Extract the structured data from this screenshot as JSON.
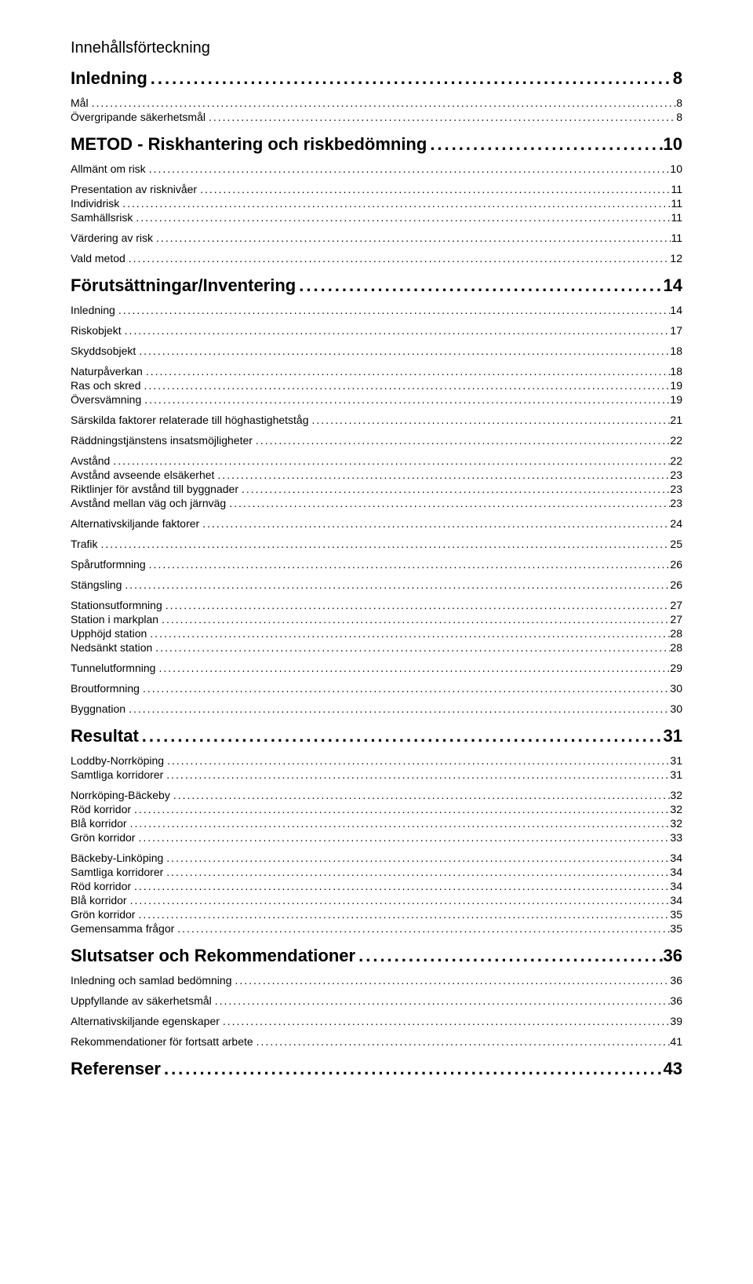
{
  "title": "Innehållsförteckning",
  "styles": {
    "background": "#ffffff",
    "textColor": "#000000",
    "lvl0_fontsize": 22,
    "lvl0_bold": true,
    "lvl1_fontsize": 14,
    "lvl2_fontsize": 14,
    "fontFamily": "Verdana"
  },
  "entries": [
    {
      "level": 0,
      "label": "Inledning",
      "page": "8"
    },
    {
      "level": 1,
      "label": "Mål",
      "page": "8"
    },
    {
      "level": 2,
      "label": "Övergripande säkerhetsmål",
      "page": "8"
    },
    {
      "level": 0,
      "label": "METOD - Riskhantering och riskbedömning",
      "page": "10"
    },
    {
      "level": 1,
      "label": "Allmänt om risk",
      "page": "10"
    },
    {
      "level": 1,
      "label": "Presentation av risknivåer",
      "page": "11"
    },
    {
      "level": 2,
      "label": "Individrisk",
      "page": "11"
    },
    {
      "level": 2,
      "label": "Samhällsrisk",
      "page": "11"
    },
    {
      "level": 1,
      "label": "Värdering av risk",
      "page": "11"
    },
    {
      "level": 1,
      "label": "Vald metod",
      "page": "12"
    },
    {
      "level": 0,
      "label": "Förutsättningar/Inventering",
      "page": "14"
    },
    {
      "level": 1,
      "label": "Inledning",
      "page": "14"
    },
    {
      "level": 1,
      "label": "Riskobjekt",
      "page": "17"
    },
    {
      "level": 1,
      "label": "Skyddsobjekt",
      "page": "18"
    },
    {
      "level": 1,
      "label": "Naturpåverkan",
      "page": "18"
    },
    {
      "level": 2,
      "label": "Ras och skred",
      "page": "19"
    },
    {
      "level": 2,
      "label": "Översvämning",
      "page": "19"
    },
    {
      "level": 1,
      "label": "Särskilda faktorer relaterade till höghastighetståg",
      "page": "21"
    },
    {
      "level": 1,
      "label": "Räddningstjänstens insatsmöjligheter",
      "page": "22"
    },
    {
      "level": 1,
      "label": "Avstånd",
      "page": "22"
    },
    {
      "level": 2,
      "label": "Avstånd avseende elsäkerhet",
      "page": "23"
    },
    {
      "level": 2,
      "label": "Riktlinjer för avstånd till byggnader",
      "page": "23"
    },
    {
      "level": 2,
      "label": "Avstånd mellan väg och järnväg",
      "page": "23"
    },
    {
      "level": 1,
      "label": "Alternativskiljande faktorer",
      "page": "24"
    },
    {
      "level": 1,
      "label": "Trafik",
      "page": "25"
    },
    {
      "level": 1,
      "label": "Spårutformning",
      "page": "26"
    },
    {
      "level": 1,
      "label": "Stängsling",
      "page": "26"
    },
    {
      "level": 1,
      "label": "Stationsutformning",
      "page": "27"
    },
    {
      "level": 2,
      "label": "Station i markplan",
      "page": "27"
    },
    {
      "level": 2,
      "label": "Upphöjd station",
      "page": "28"
    },
    {
      "level": 2,
      "label": "Nedsänkt station",
      "page": "28"
    },
    {
      "level": 1,
      "label": "Tunnelutformning",
      "page": "29"
    },
    {
      "level": 1,
      "label": "Broutformning",
      "page": "30"
    },
    {
      "level": 1,
      "label": "Byggnation",
      "page": "30"
    },
    {
      "level": 0,
      "label": "Resultat",
      "page": "31"
    },
    {
      "level": 1,
      "label": "Loddby-Norrköping",
      "page": "31"
    },
    {
      "level": 2,
      "label": "Samtliga korridorer",
      "page": "31"
    },
    {
      "level": 1,
      "label": "Norrköping-Bäckeby",
      "page": "32"
    },
    {
      "level": 2,
      "label": "Röd korridor",
      "page": "32"
    },
    {
      "level": 2,
      "label": "Blå korridor",
      "page": "32"
    },
    {
      "level": 2,
      "label": "Grön korridor",
      "page": "33"
    },
    {
      "level": 1,
      "label": "Bäckeby-Linköping",
      "page": "34"
    },
    {
      "level": 2,
      "label": "Samtliga korridorer",
      "page": "34"
    },
    {
      "level": 2,
      "label": "Röd korridor",
      "page": "34"
    },
    {
      "level": 2,
      "label": "Blå korridor",
      "page": "34"
    },
    {
      "level": 2,
      "label": "Grön korridor",
      "page": "35"
    },
    {
      "level": 2,
      "label": "Gemensamma frågor",
      "page": "35"
    },
    {
      "level": 0,
      "label": "Slutsatser och Rekommendationer",
      "page": "36"
    },
    {
      "level": 1,
      "label": "Inledning och samlad bedömning",
      "page": "36"
    },
    {
      "level": 1,
      "label": "Uppfyllande av säkerhetsmål",
      "page": "36"
    },
    {
      "level": 1,
      "label": "Alternativskiljande egenskaper",
      "page": "39"
    },
    {
      "level": 1,
      "label": "Rekommendationer för fortsatt arbete",
      "page": "41"
    },
    {
      "level": 0,
      "label": "Referenser",
      "page": "43"
    }
  ]
}
